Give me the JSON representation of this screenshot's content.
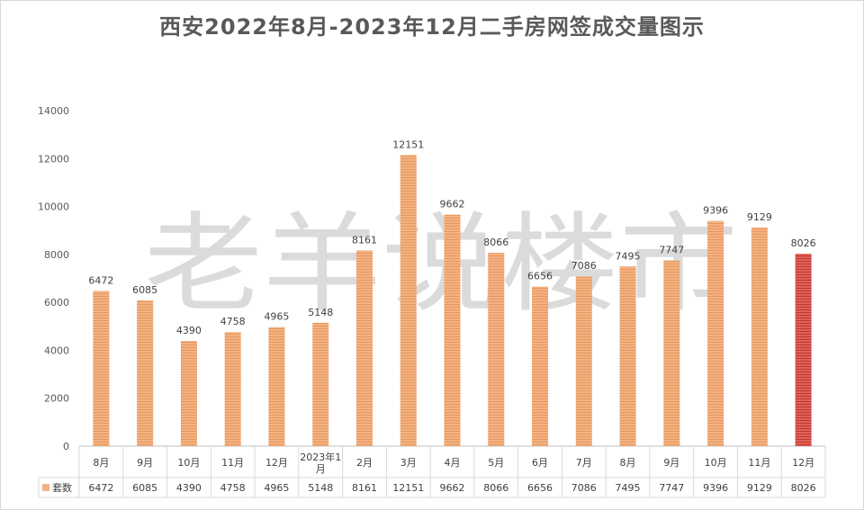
{
  "title": "西安2022年8月-2023年12月二手房网签成交量图示",
  "watermark": "老羊说楼市",
  "chart_data": {
    "type": "bar",
    "categories": [
      "8月",
      "9月",
      "10月",
      "11月",
      "12月",
      "2023年1月",
      "2月",
      "3月",
      "4月",
      "5月",
      "6月",
      "7月",
      "8月",
      "9月",
      "10月",
      "11月",
      "12月"
    ],
    "series": [
      {
        "name": "套数",
        "values": [
          6472,
          6085,
          4390,
          4758,
          4965,
          5148,
          8161,
          12151,
          9662,
          8066,
          6656,
          7086,
          7495,
          7747,
          9396,
          9129,
          8026
        ]
      }
    ],
    "ylim": [
      0,
      14000
    ],
    "yticks": [
      0,
      2000,
      4000,
      6000,
      8000,
      10000,
      12000,
      14000
    ],
    "grid": false,
    "legend": "data-table",
    "colors": {
      "bar": "#f4b183",
      "bar_stripe": "#e39a5c",
      "highlight_bar": "#e0605a",
      "highlight_stripe": "#c0392b",
      "highlight_index": 16
    }
  }
}
